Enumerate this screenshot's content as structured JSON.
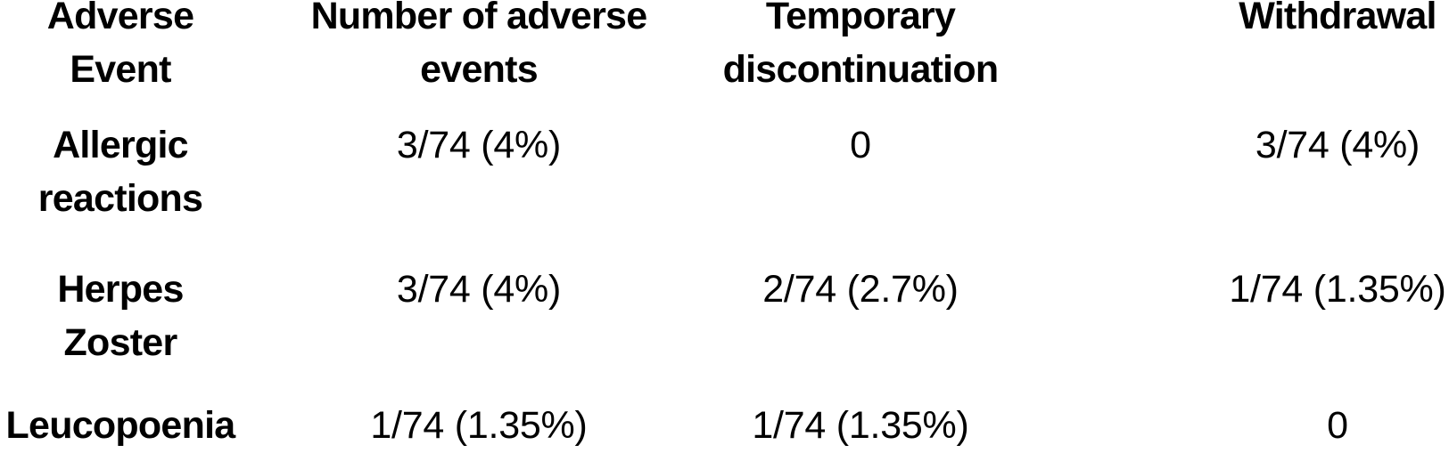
{
  "colors": {
    "background": "#ffffff",
    "text": "#000000"
  },
  "chart_data": {
    "type": "table",
    "columns": [
      "Adverse\nEvent",
      "Number of adverse\nevents",
      "Temporary\ndiscontinuation",
      "Withdrawal"
    ],
    "rows": [
      [
        "Allergic\nreactions",
        "3/74 (4%)",
        "0",
        "3/74 (4%)"
      ],
      [
        "Herpes\nZoster",
        "3/74 (4%)",
        "2/74 (2.7%)",
        "1/74 (1.35%)"
      ],
      [
        "Leucopoenia",
        "1/74 (1.35%)",
        "1/74 (1.35%)",
        "0"
      ]
    ]
  }
}
